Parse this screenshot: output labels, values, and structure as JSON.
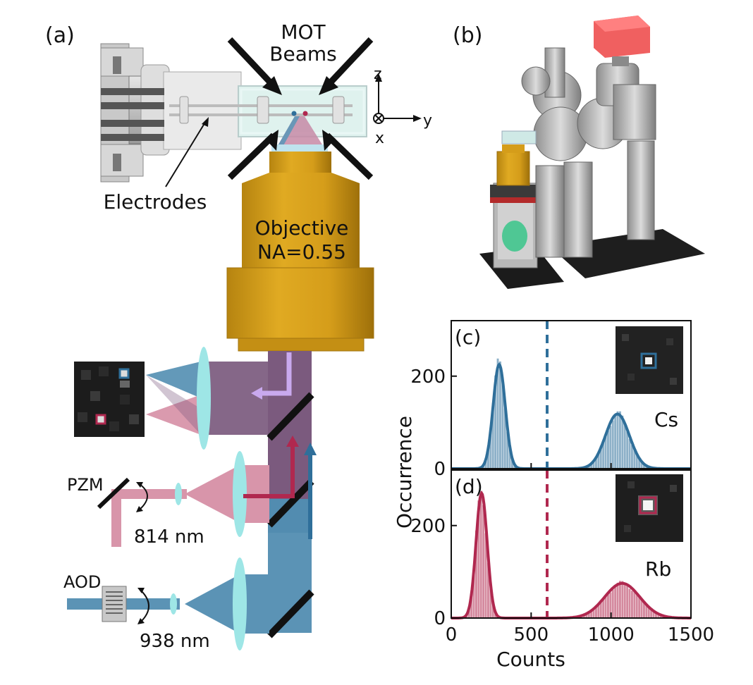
{
  "panel_labels": {
    "a": "(a)",
    "b": "(b)",
    "c": "(c)",
    "d": "(d)"
  },
  "mot": {
    "line1": "MOT",
    "line2": "Beams"
  },
  "axes_labels": {
    "z": "z",
    "x": "x",
    "y": "y"
  },
  "electrodes_label": "Electrodes",
  "objective": {
    "line1": "Objective",
    "line2": "NA=0.55"
  },
  "pzm_label": "PZM",
  "aod_label": "AOD",
  "wavelength_814": "814 nm",
  "wavelength_938": "938 nm",
  "colors": {
    "cs": "#2f6f9a",
    "rb": "#b0284f",
    "beam_938": "#5b93b5",
    "beam_814": "#d895aa",
    "combined": "#7b5a7e",
    "lens": "#9ee6e6",
    "objective": "#d9a21c",
    "chamber_red": "#f06060"
  },
  "chart_data": [
    {
      "type": "histogram",
      "panel": "(c)",
      "label": "Cs",
      "threshold": 600,
      "xlim": [
        0,
        1500
      ],
      "ylim": [
        0,
        320
      ],
      "yticks": [
        0,
        200
      ],
      "peaks": [
        {
          "center": 300,
          "height": 225,
          "sigma": 38
        },
        {
          "center": 1040,
          "height": 118,
          "sigma": 75
        }
      ]
    },
    {
      "type": "histogram",
      "panel": "(d)",
      "label": "Rb",
      "threshold": 600,
      "xlim": [
        0,
        1500
      ],
      "ylim": [
        0,
        320
      ],
      "yticks": [
        0,
        200
      ],
      "peaks": [
        {
          "center": 190,
          "height": 270,
          "sigma": 35
        },
        {
          "center": 1070,
          "height": 75,
          "sigma": 110
        }
      ]
    }
  ],
  "chart_axes": {
    "xlabel": "Counts",
    "ylabel": "Occurrence",
    "xticks": [
      "0",
      "500",
      "1000",
      "1500"
    ],
    "yticks": [
      "0",
      "200"
    ]
  }
}
